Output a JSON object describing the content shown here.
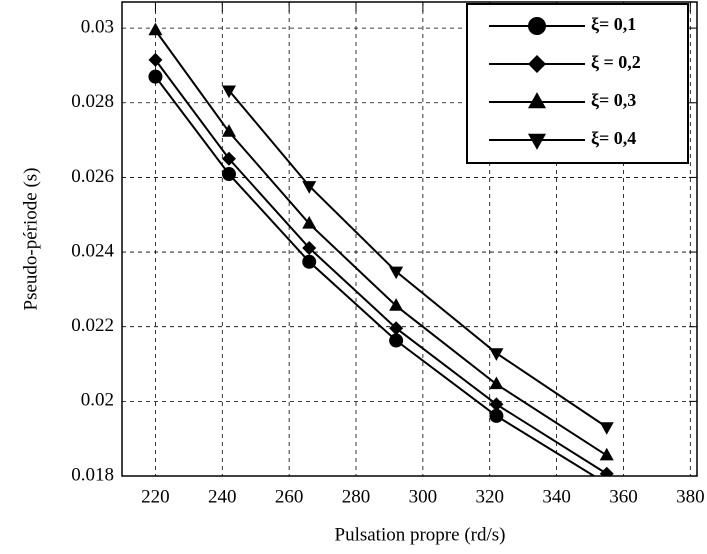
{
  "chart_data": {
    "type": "line",
    "x_label": "Pulsation propre (rd/s)",
    "y_label": "Pseudo-période (s)",
    "x": [
      220,
      242,
      266,
      292,
      322,
      355
    ],
    "series": [
      {
        "name": "ξ= 0,1",
        "color": "#000000",
        "marker": "circle",
        "values": [
          0.0287,
          0.02609,
          0.02374,
          0.02163,
          0.01961,
          0.01779
        ]
      },
      {
        "name": "ξ = 0,2",
        "color": "#000000",
        "marker": "diamond",
        "values": [
          0.02915,
          0.0265,
          0.02411,
          0.02196,
          0.01992,
          0.01806
        ]
      },
      {
        "name": "ξ= 0,3",
        "color": "#000000",
        "marker": "triangle-up",
        "values": [
          0.02994,
          0.02722,
          0.02476,
          0.02256,
          0.02046,
          0.01855
        ]
      },
      {
        "name": "ξ= 0,4",
        "color": "#000000",
        "marker": "triangle-down",
        "values": [
          null,
          0.02833,
          0.02577,
          0.02348,
          0.02129,
          0.01931
        ]
      }
    ],
    "xlim": [
      210,
      382
    ],
    "ylim": [
      0.018,
      0.0307
    ],
    "xticks": [
      220,
      240,
      260,
      280,
      300,
      320,
      340,
      360,
      380
    ],
    "yticks": [
      0.018,
      0.02,
      0.022,
      0.024,
      0.026,
      0.028,
      0.03
    ],
    "grid": true,
    "legend": "top-right"
  }
}
